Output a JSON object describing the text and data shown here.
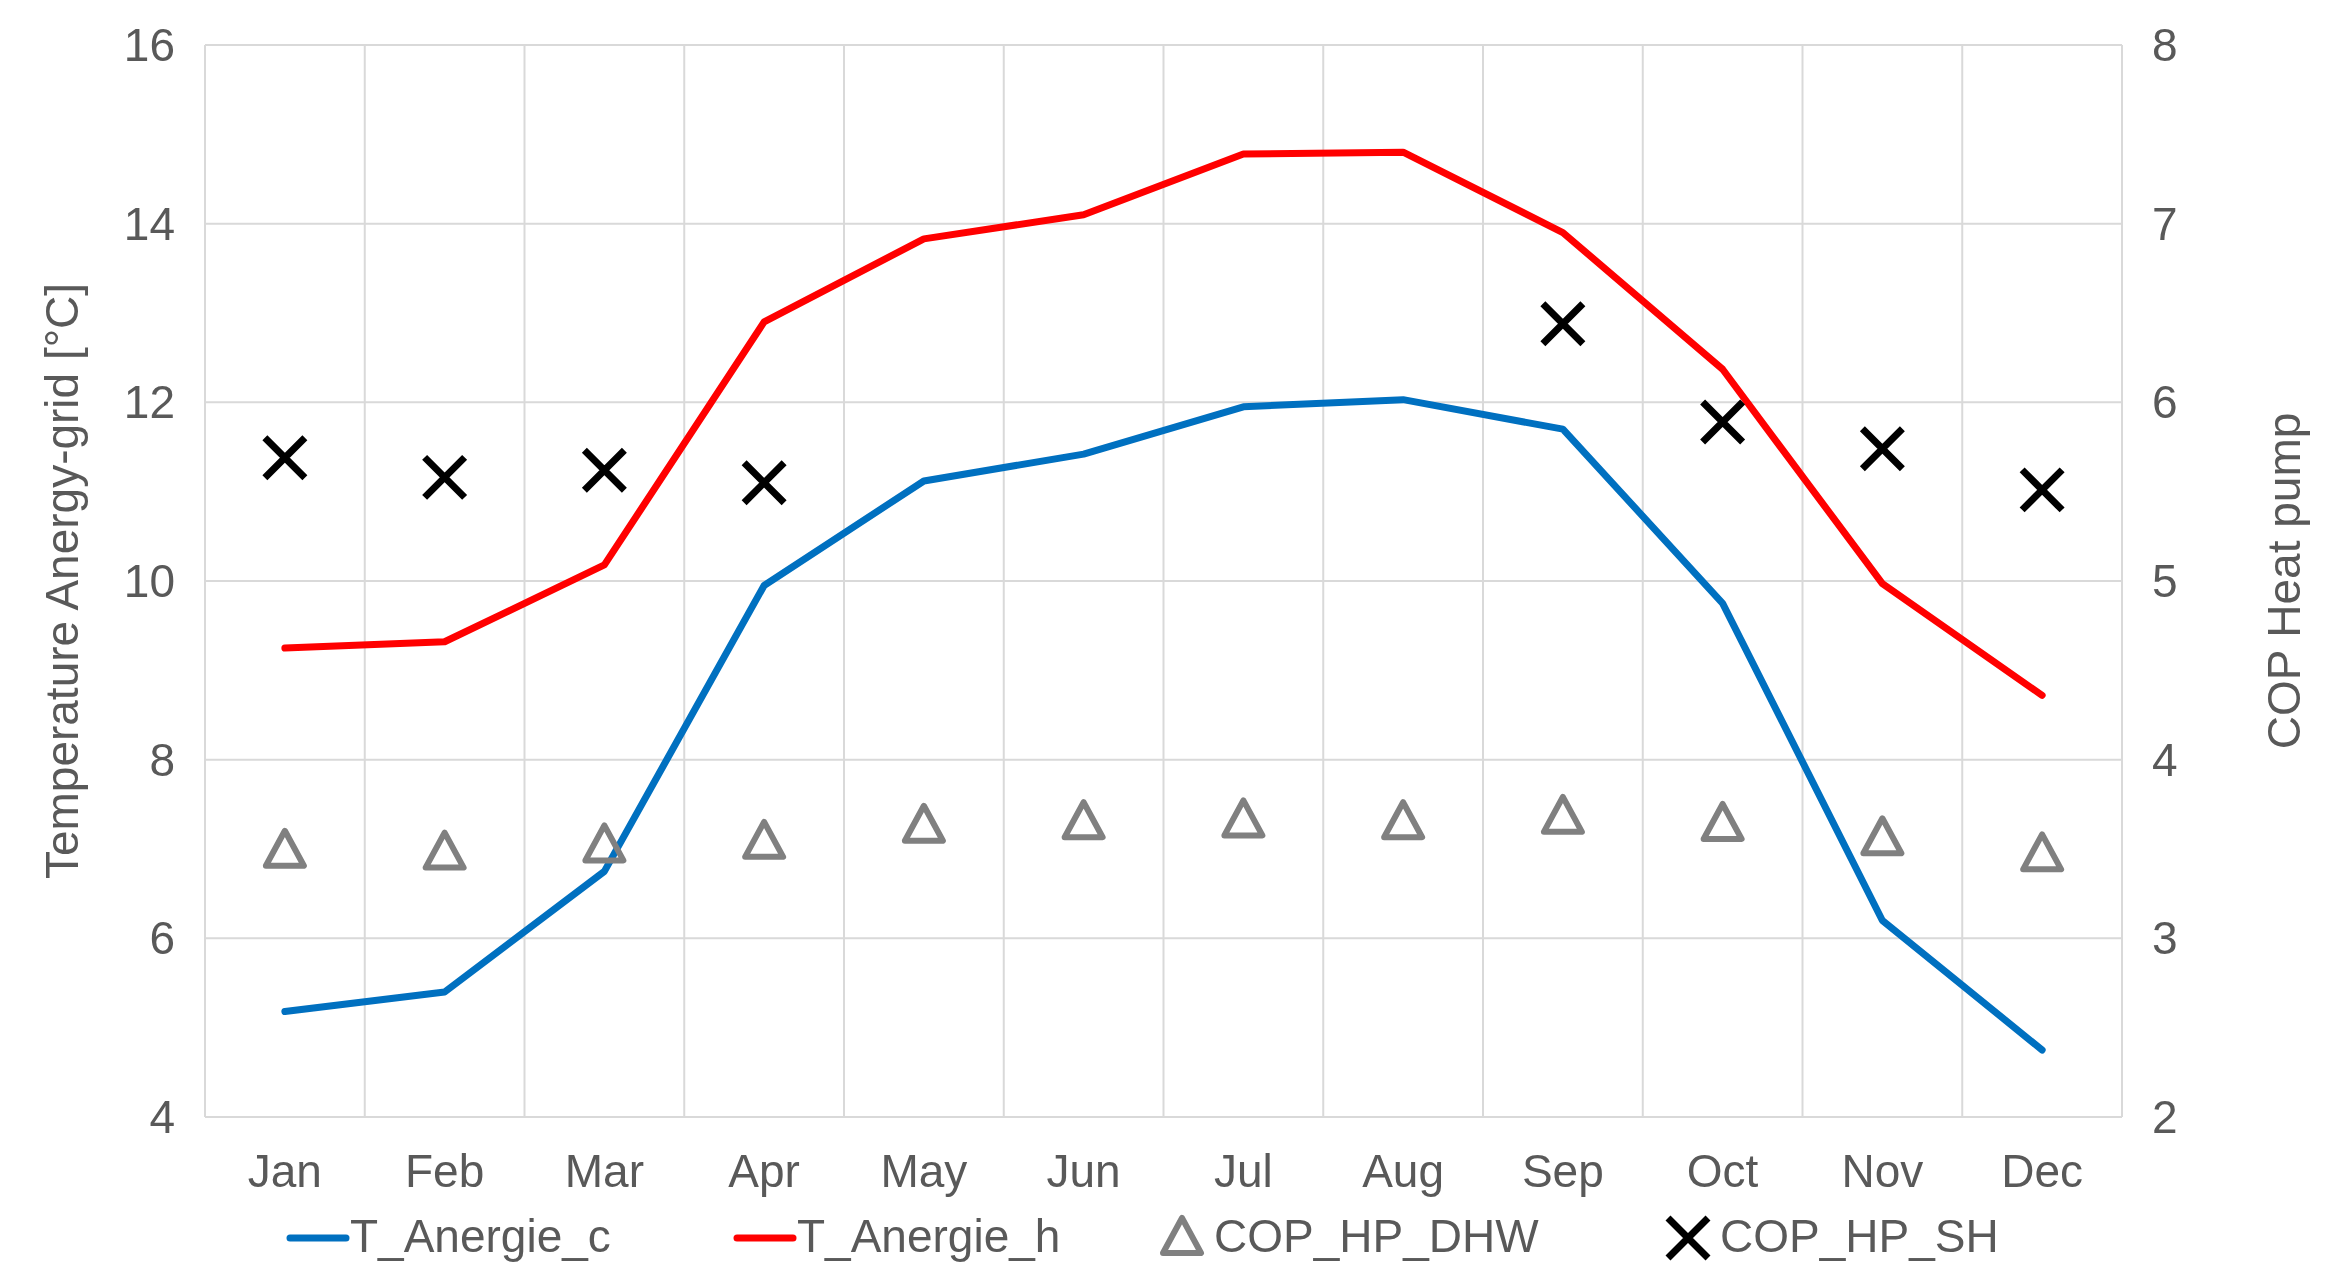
{
  "chart_data": {
    "type": "line",
    "ylabel": "Temperature Anergy-grid [°C]",
    "y2label": "COP Heat pump",
    "categories": [
      "Jan",
      "Feb",
      "Mar",
      "Apr",
      "May",
      "Jun",
      "Jul",
      "Aug",
      "Sep",
      "Oct",
      "Nov",
      "Dec"
    ],
    "ylim": [
      4,
      16
    ],
    "yticks": [
      4,
      6,
      8,
      10,
      12,
      14,
      16
    ],
    "y2lim": [
      2,
      8
    ],
    "y2ticks": [
      2,
      3,
      4,
      5,
      6,
      7,
      8
    ],
    "grid": true,
    "legend": "bottom",
    "series": [
      {
        "name": "T_Anergie_c",
        "color": "#0070c0",
        "marker": "none",
        "values": [
          5.18,
          5.4,
          6.75,
          9.95,
          11.12,
          11.42,
          11.95,
          12.03,
          11.7,
          9.75,
          6.2,
          4.75
        ]
      },
      {
        "name": "T_Anergie_h",
        "color": "#ff0000",
        "marker": "none",
        "values": [
          9.25,
          9.32,
          10.18,
          12.9,
          13.83,
          14.1,
          14.78,
          14.8,
          13.9,
          12.37,
          9.97,
          8.72
        ]
      },
      {
        "name": "COP_HP_DHW",
        "type": "scatter",
        "axis": "y2",
        "color": "#808080",
        "marker": "triangle",
        "values": [
          3.49,
          3.48,
          3.52,
          3.54,
          3.63,
          3.65,
          3.66,
          3.65,
          3.68,
          3.64,
          3.56,
          3.47
        ]
      },
      {
        "name": "COP_HP_SH",
        "type": "scatter",
        "axis": "y2",
        "color": "#000000",
        "marker": "cross",
        "values": [
          5.69,
          5.58,
          5.62,
          5.55,
          null,
          null,
          null,
          null,
          6.44,
          5.89,
          5.74,
          5.51
        ]
      }
    ]
  }
}
